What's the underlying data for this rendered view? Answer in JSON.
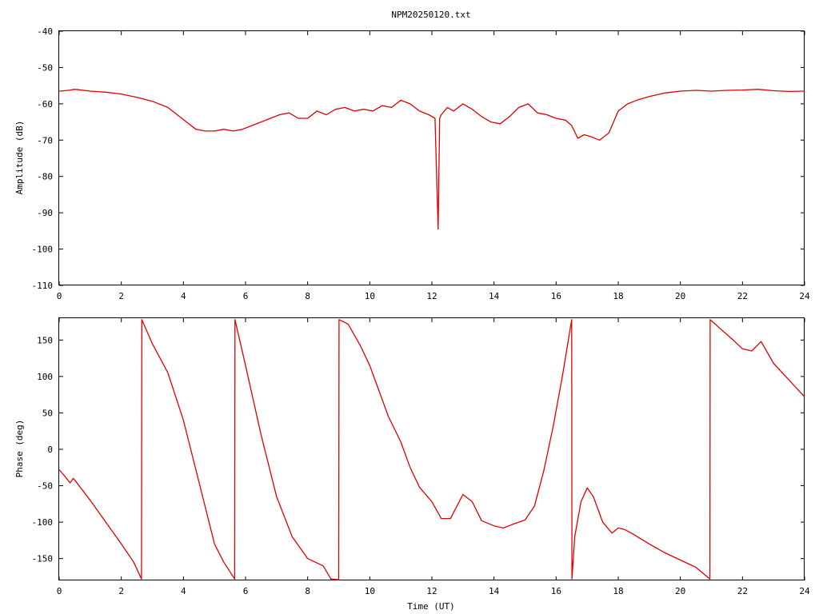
{
  "title": "NPM20250120.txt",
  "colors": {
    "series": "#e00000",
    "axis": "#000000",
    "background": "#ffffff"
  },
  "chart_data": [
    {
      "type": "line",
      "title": "NPM20250120.txt",
      "xlabel": "",
      "ylabel": "Amplitude (dB)",
      "xlim": [
        0,
        24
      ],
      "ylim": [
        -110,
        -40
      ],
      "xticks": [
        "0",
        "2",
        "4",
        "6",
        "8",
        "10",
        "12",
        "14",
        "16",
        "18",
        "20",
        "22",
        "24"
      ],
      "yticks": [
        "-40",
        "-50",
        "-60",
        "-70",
        "-80",
        "-90",
        "-100",
        "-110"
      ],
      "grid": false,
      "series": [
        {
          "color": "#e00000",
          "x": [
            0,
            0.3,
            0.5,
            1,
            1.5,
            2,
            2.5,
            3,
            3.5,
            3.8,
            4.1,
            4.4,
            4.7,
            5,
            5.3,
            5.6,
            5.9,
            6.2,
            6.5,
            6.8,
            7.1,
            7.4,
            7.7,
            8,
            8.3,
            8.6,
            8.9,
            9.2,
            9.5,
            9.8,
            10.1,
            10.4,
            10.7,
            11,
            11.3,
            11.6,
            11.9,
            12.1,
            12.2,
            12.25,
            12.3,
            12.5,
            12.7,
            13,
            13.3,
            13.6,
            13.9,
            14.2,
            14.5,
            14.8,
            15.1,
            15.4,
            15.7,
            16,
            16.3,
            16.5,
            16.7,
            16.9,
            17.1,
            17.4,
            17.7,
            18,
            18.3,
            18.6,
            19,
            19.5,
            20,
            20.5,
            21,
            21.5,
            22,
            22.5,
            23,
            23.5,
            24
          ],
          "y": [
            -56.5,
            -56.3,
            -56,
            -56.5,
            -56.8,
            -57.3,
            -58.2,
            -59.3,
            -61,
            -63,
            -65,
            -67,
            -67.5,
            -67.5,
            -67,
            -67.5,
            -67,
            -66,
            -65,
            -64,
            -63,
            -62.5,
            -64,
            -64,
            -62,
            -63,
            -61.5,
            -61,
            -62,
            -61.5,
            -62,
            -60.5,
            -61,
            -59,
            -60,
            -62,
            -63,
            -64,
            -94.5,
            -64,
            -63,
            -61,
            -62,
            -60,
            -61.5,
            -63.5,
            -65,
            -65.5,
            -63.5,
            -61,
            -60,
            -62.5,
            -63,
            -64,
            -64.5,
            -66,
            -69.5,
            -68.5,
            -69,
            -70,
            -68,
            -62,
            -60,
            -59,
            -58,
            -57,
            -56.5,
            -56.3,
            -56.5,
            -56.3,
            -56.2,
            -56,
            -56.4,
            -56.6,
            -56.5
          ]
        }
      ]
    },
    {
      "type": "line",
      "title": "",
      "xlabel": "Time (UT)",
      "ylabel": "Phase (deg)",
      "xlim": [
        0,
        24
      ],
      "ylim": [
        -180,
        180
      ],
      "xticks": [
        "0",
        "2",
        "4",
        "6",
        "8",
        "10",
        "12",
        "14",
        "16",
        "18",
        "20",
        "22",
        "24"
      ],
      "yticks": [
        "150",
        "100",
        "50",
        "0",
        "-50",
        "-100",
        "-150"
      ],
      "grid": false,
      "series": [
        {
          "color": "#e00000",
          "x": [
            0,
            0.2,
            0.35,
            0.45,
            0.5,
            1,
            1.5,
            2,
            2.4,
            2.65,
            2.66,
            3,
            3.5,
            4,
            4.5,
            5,
            5.3,
            5.65,
            5.66,
            6,
            6.5,
            7,
            7.5,
            8,
            8.5,
            8.75,
            9,
            9.01,
            9.3,
            9.7,
            10,
            10.3,
            10.6,
            11,
            11.3,
            11.6,
            12,
            12.3,
            12.6,
            13,
            13.3,
            13.6,
            14,
            14.3,
            14.6,
            15,
            15.3,
            15.6,
            15.9,
            16.2,
            16.5,
            16.51,
            16.6,
            16.8,
            17,
            17.2,
            17.5,
            17.8,
            18,
            18.2,
            18.5,
            19,
            19.5,
            20,
            20.5,
            20.95,
            20.96,
            21.3,
            21.7,
            22,
            22.3,
            22.6,
            23,
            23.5,
            24
          ],
          "y": [
            -28,
            -38,
            -46,
            -40,
            -42,
            -70,
            -100,
            -130,
            -155,
            -178,
            178,
            145,
            105,
            40,
            -45,
            -130,
            -155,
            -178,
            178,
            115,
            20,
            -65,
            -120,
            -150,
            -160,
            -178,
            -179,
            178,
            172,
            142,
            115,
            80,
            45,
            10,
            -25,
            -52,
            -72,
            -95,
            -95,
            -62,
            -72,
            -98,
            -105,
            -108,
            -103,
            -97,
            -78,
            -30,
            30,
            100,
            178,
            -178,
            -120,
            -72,
            -53,
            -65,
            -100,
            -115,
            -108,
            -110,
            -117,
            -130,
            -142,
            -152,
            -162,
            -178,
            178,
            165,
            150,
            138,
            135,
            148,
            118,
            95,
            72
          ]
        }
      ]
    }
  ]
}
